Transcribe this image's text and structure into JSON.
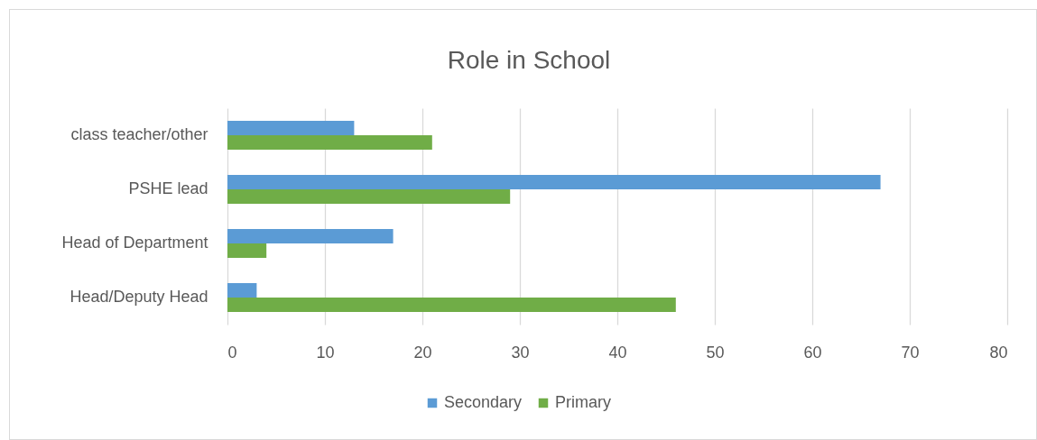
{
  "chart_data": {
    "type": "bar",
    "orientation": "horizontal",
    "title": "Role in School",
    "categories": [
      "class teacher/other",
      "PSHE lead",
      "Head of Department",
      "Head/Deputy Head"
    ],
    "series": [
      {
        "name": "Secondary",
        "color": "#5b9bd5",
        "values": [
          13,
          67,
          17,
          3
        ]
      },
      {
        "name": "Primary",
        "color": "#70ad47",
        "values": [
          21,
          29,
          4,
          46
        ]
      }
    ],
    "xlim": [
      0,
      80
    ],
    "xticks": [
      0,
      10,
      20,
      30,
      40,
      50,
      60,
      70,
      80
    ],
    "grid": "x",
    "legend": "bottom"
  }
}
